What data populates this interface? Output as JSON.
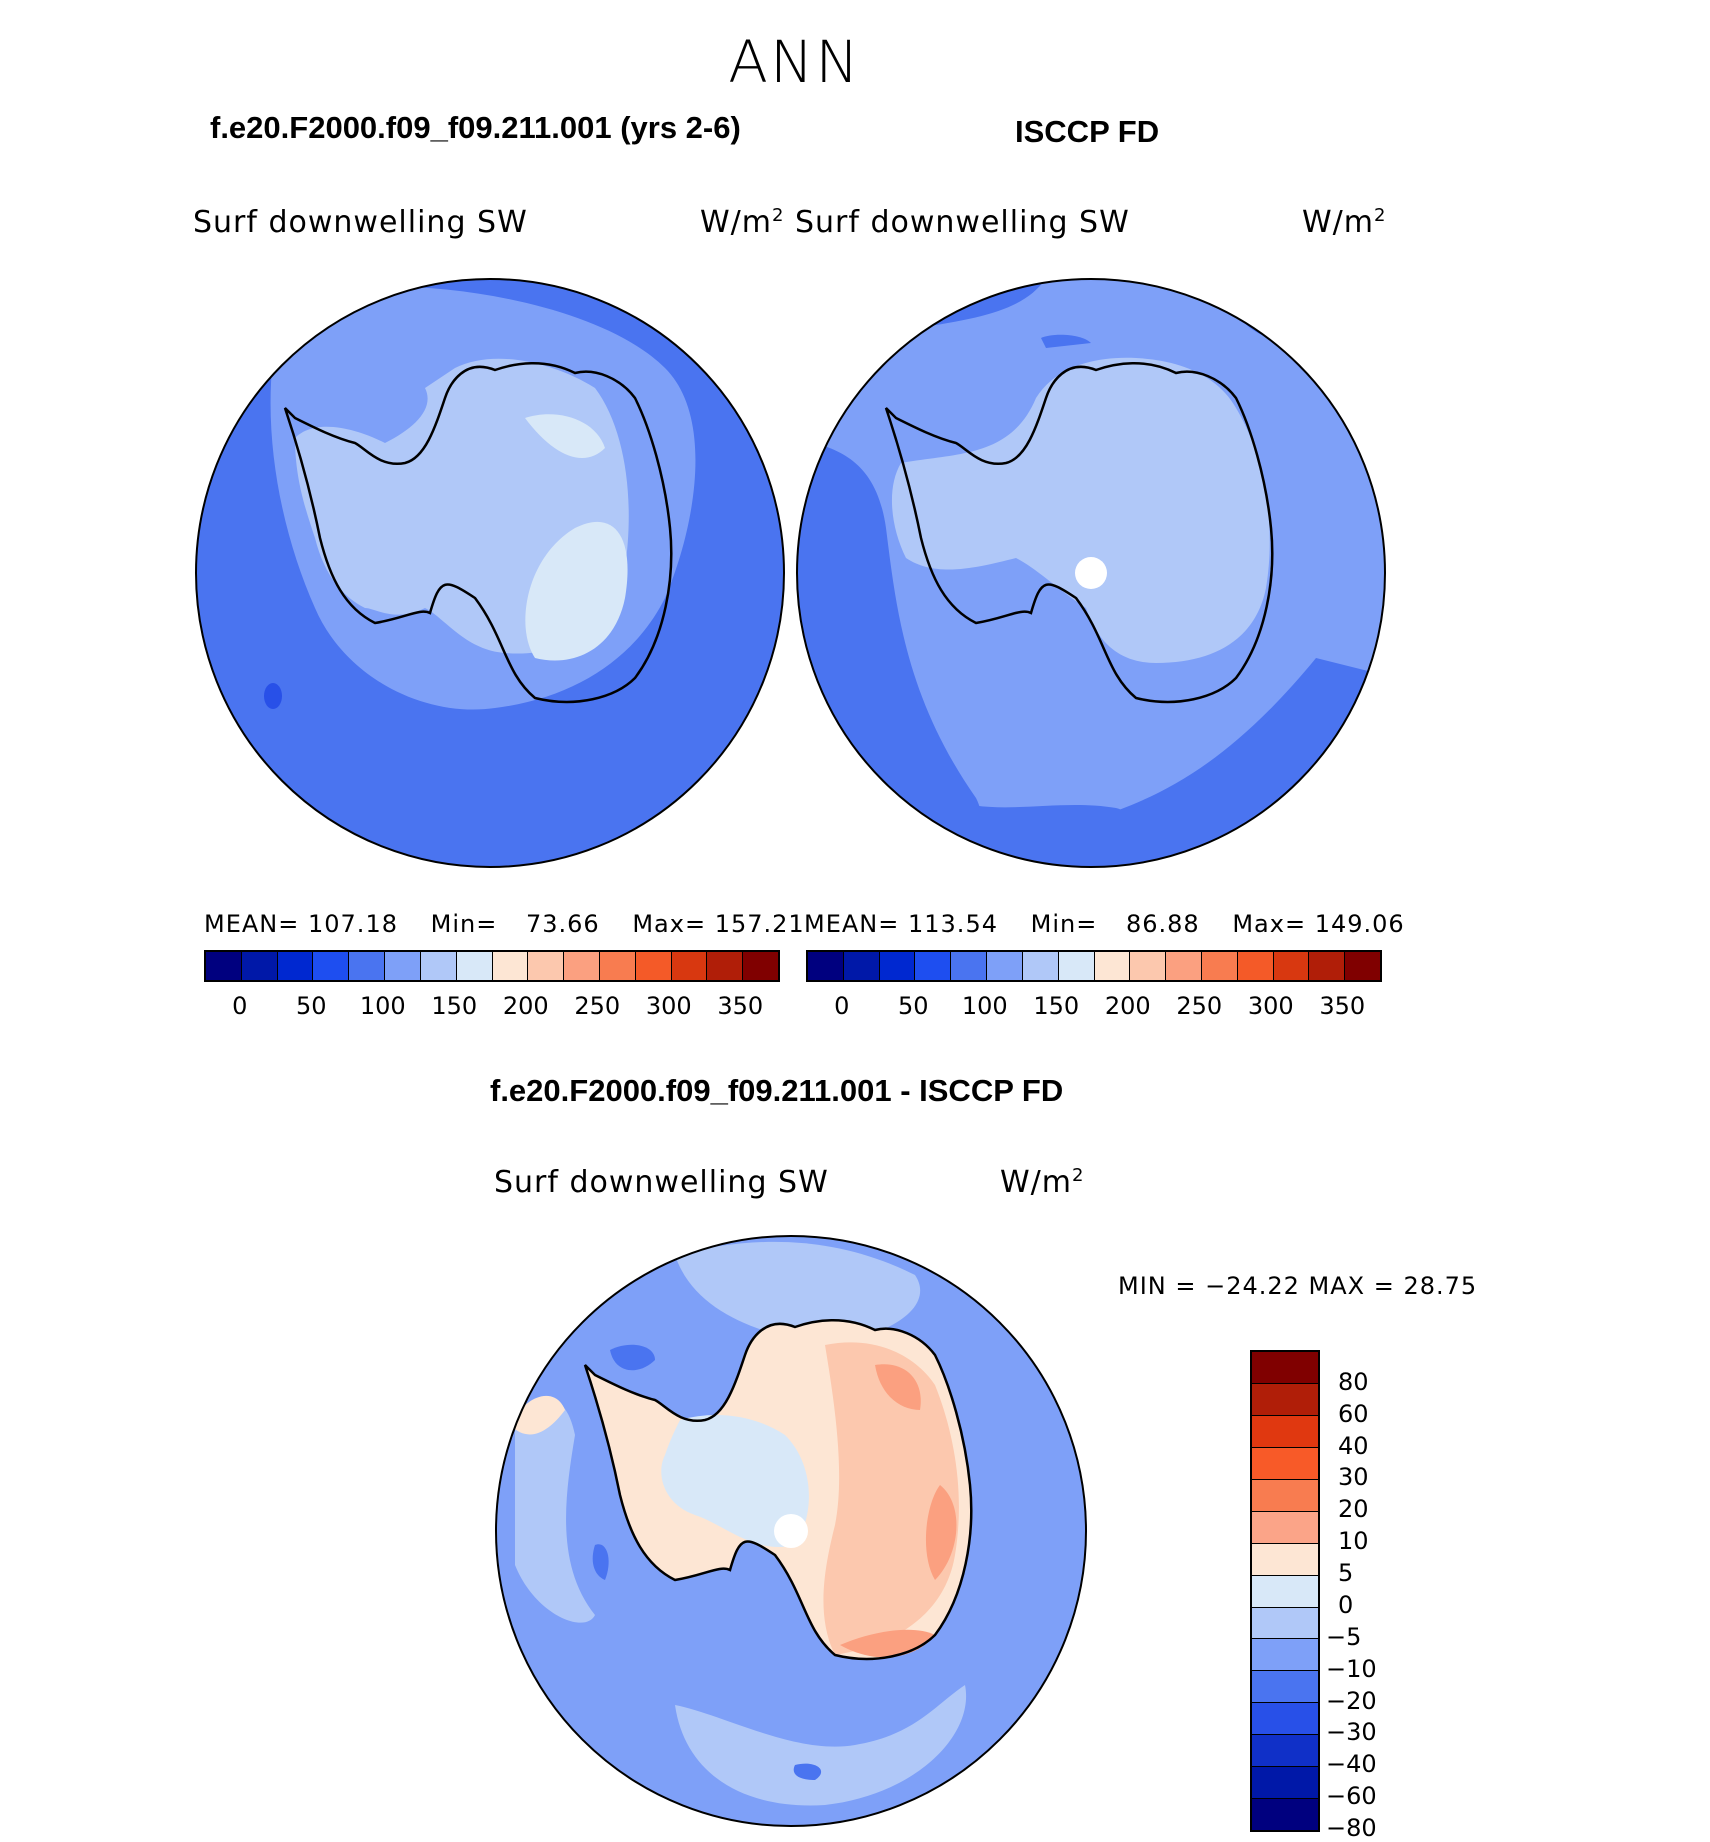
{
  "season": "ANN",
  "panels": {
    "model": {
      "title": "f.e20.F2000.f09_f09.211.001 (yrs 2-6)",
      "variable": "Surf downwelling SW",
      "units_base": "W/m",
      "units_exp": "2",
      "mean_label": "MEAN=",
      "mean": "107.18",
      "min_label": "Min=",
      "min": "73.66",
      "max_label": "Max=",
      "max": "157.21"
    },
    "obs": {
      "title": "ISCCP FD",
      "variable": "Surf downwelling SW",
      "units_base": "W/m",
      "units_exp": "2",
      "mean_label": "MEAN=",
      "mean": "113.54",
      "min_label": "Min=",
      "min": "86.88",
      "max_label": "Max=",
      "max": "149.06"
    },
    "diff": {
      "title": "f.e20.F2000.f09_f09.211.001 - ISCCP FD",
      "variable": "Surf downwelling SW",
      "units_base": "W/m",
      "units_exp": "2",
      "minmax_text": "MIN = −24.22 MAX =  28.75"
    }
  },
  "abs_colorbar": {
    "colors": [
      "#00007f",
      "#0018a8",
      "#0028d0",
      "#1e4ef0",
      "#4a74f0",
      "#7ea0f8",
      "#b0c8f8",
      "#d8e8f8",
      "#fde6d4",
      "#fcc8ae",
      "#fba080",
      "#f87c50",
      "#f45a28",
      "#d83810",
      "#b01e08",
      "#800000"
    ],
    "tick_labels": [
      "0",
      "50",
      "100",
      "150",
      "200",
      "250",
      "300",
      "350"
    ]
  },
  "diff_colorbar": {
    "colors": [
      "#800000",
      "#b01e08",
      "#e03810",
      "#f85a28",
      "#f87c50",
      "#fba488",
      "#fde6d4",
      "#d8e8f8",
      "#b0c8f8",
      "#7ea0f8",
      "#4a74f0",
      "#2850e8",
      "#1030c8",
      "#0018a8",
      "#00007f"
    ],
    "tick_labels": [
      "80",
      "60",
      "40",
      "30",
      "20",
      "10",
      "5",
      "0",
      "−5",
      "−10",
      "−20",
      "−30",
      "−40",
      "−60",
      "−80"
    ]
  },
  "chart_data": [
    {
      "type": "heatmap",
      "title": "f.e20.F2000.f09_f09.211.001 (yrs 2-6)",
      "variable": "Surf downwelling SW",
      "units": "W/m2",
      "projection": "south polar stereographic",
      "mean": 107.18,
      "min": 73.66,
      "max": 157.21,
      "levels": [
        0,
        25,
        50,
        75,
        100,
        125,
        150,
        175,
        200,
        225,
        250,
        275,
        300,
        325,
        350
      ]
    },
    {
      "type": "heatmap",
      "title": "ISCCP FD",
      "variable": "Surf downwelling SW",
      "units": "W/m2",
      "projection": "south polar stereographic",
      "mean": 113.54,
      "min": 86.88,
      "max": 149.06,
      "levels": [
        0,
        25,
        50,
        75,
        100,
        125,
        150,
        175,
        200,
        225,
        250,
        275,
        300,
        325,
        350
      ]
    },
    {
      "type": "heatmap",
      "title": "f.e20.F2000.f09_f09.211.001 - ISCCP FD",
      "variable": "Surf downwelling SW",
      "units": "W/m2",
      "projection": "south polar stereographic",
      "min": -24.22,
      "max": 28.75,
      "levels": [
        -80,
        -60,
        -40,
        -30,
        -20,
        -10,
        -5,
        0,
        5,
        10,
        20,
        30,
        40,
        60,
        80
      ]
    }
  ]
}
